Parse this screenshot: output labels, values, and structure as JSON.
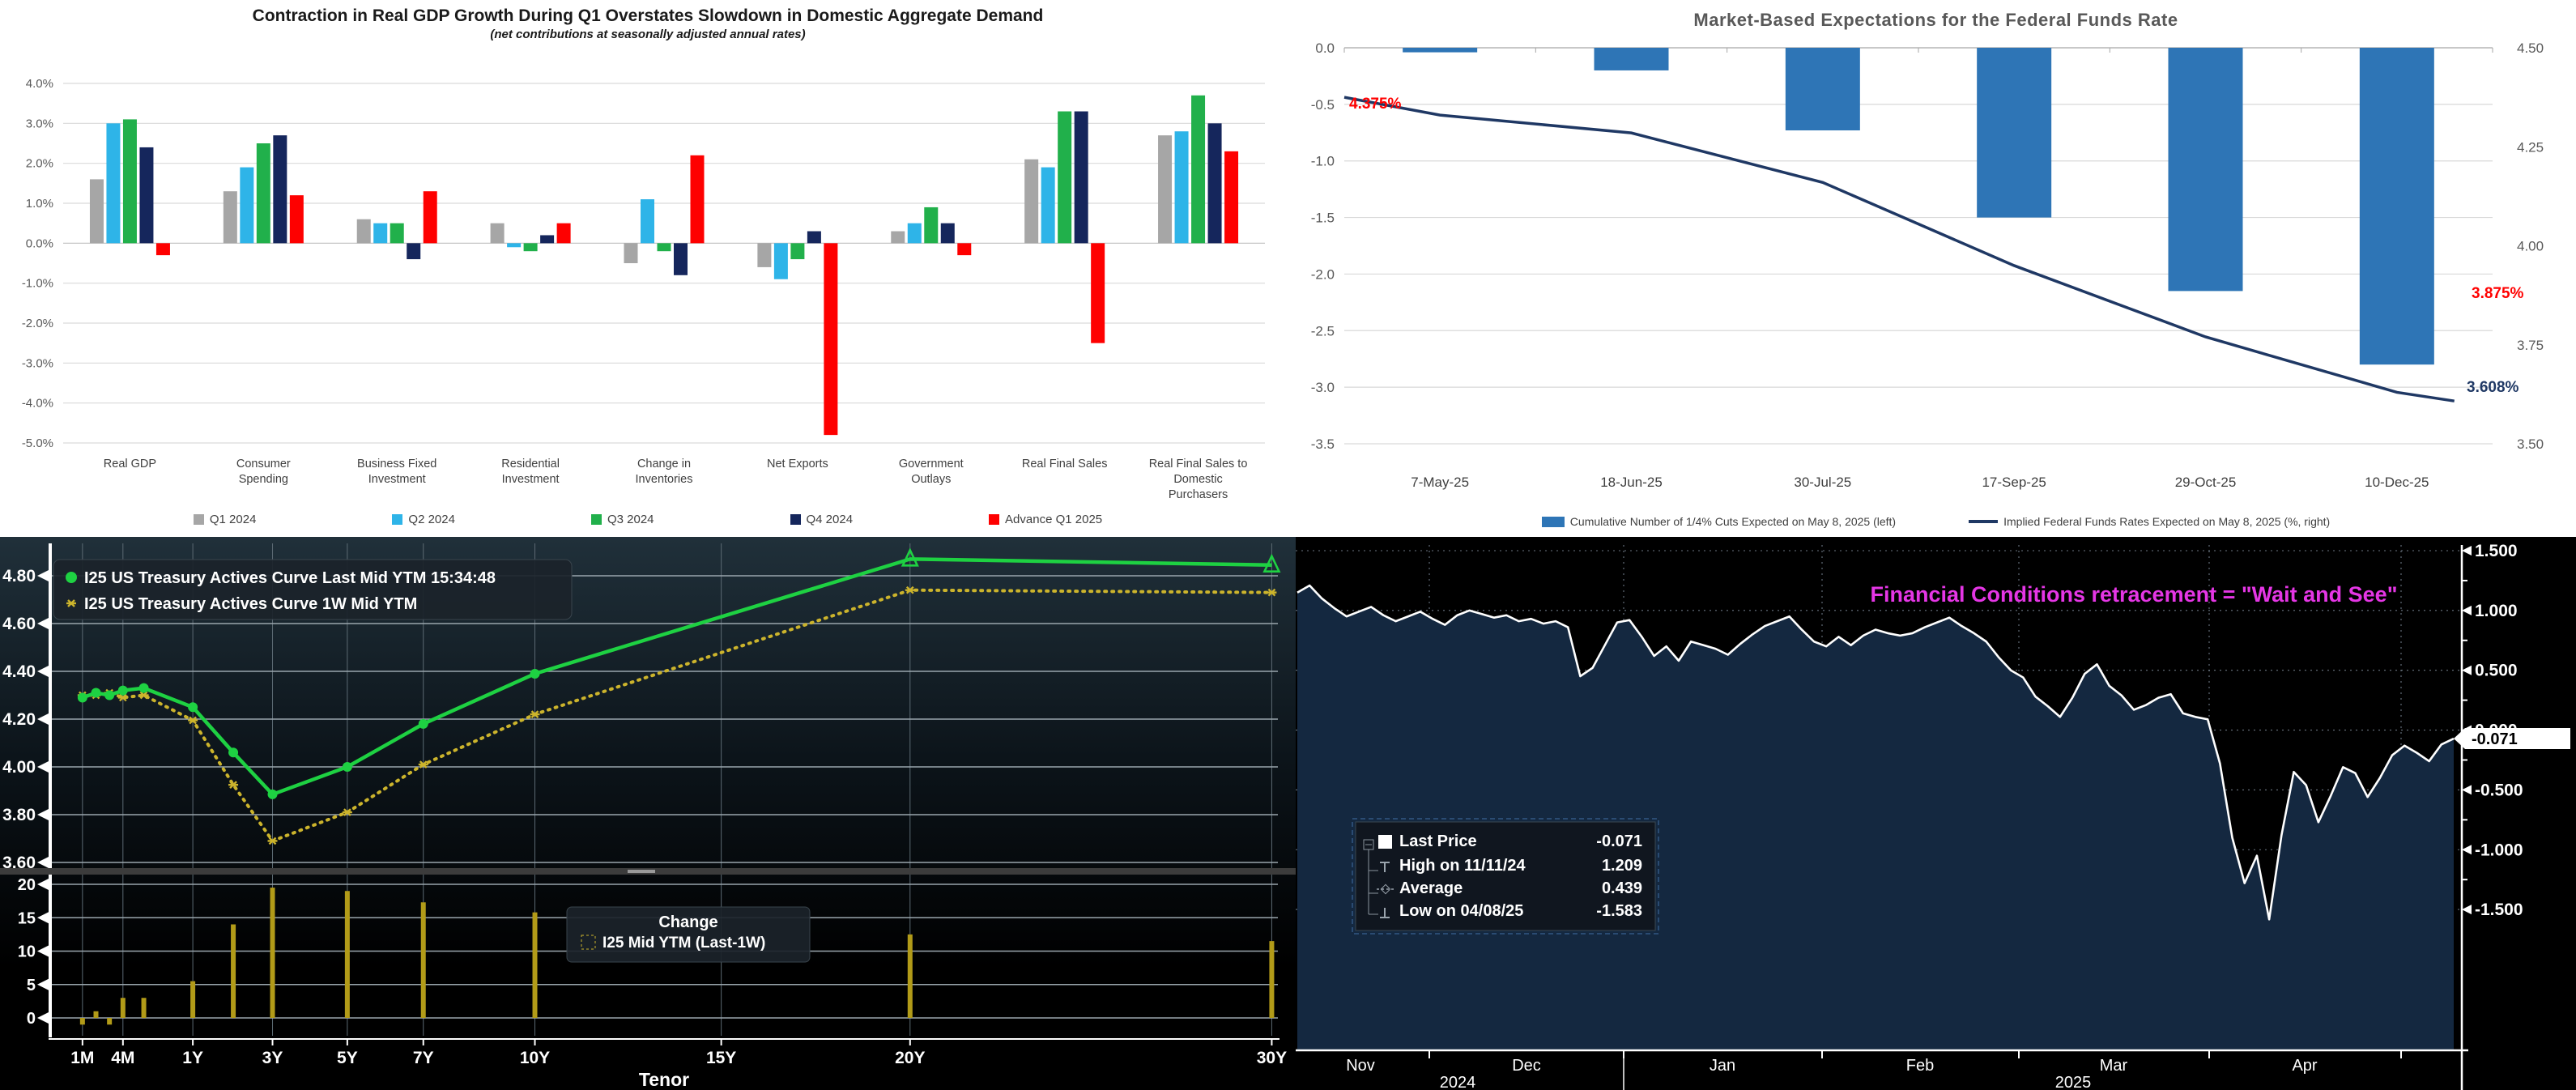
{
  "chart_data": [
    {
      "type": "bar",
      "title": "Contraction in Real GDP Growth During Q1 Overstates Slowdown in Domestic Aggregate Demand",
      "subtitle": "(net contributions at seasonally adjusted annual rates)",
      "categories": [
        "Real GDP",
        "Consumer|Spending",
        "Business Fixed|Investment",
        "Residential|Investment",
        "Change in|Inventories",
        "Net Exports",
        "Government|Outlays",
        "Real Final Sales",
        "Real Final Sales to|Domestic|Purchasers"
      ],
      "series": [
        {
          "name": "Q1 2024",
          "color": "#a6a6a6",
          "values": [
            1.6,
            1.3,
            0.6,
            0.5,
            -0.5,
            -0.6,
            0.3,
            2.1,
            2.7
          ]
        },
        {
          "name": "Q2 2024",
          "color": "#2eb4e8",
          "values": [
            3.0,
            1.9,
            0.5,
            -0.1,
            1.1,
            -0.9,
            0.5,
            1.9,
            2.8
          ]
        },
        {
          "name": "Q3 2024",
          "color": "#21b04b",
          "values": [
            3.1,
            2.5,
            0.5,
            -0.2,
            -0.2,
            -0.4,
            0.9,
            3.3,
            3.7
          ]
        },
        {
          "name": "Q4 2024",
          "color": "#15265c",
          "values": [
            2.4,
            2.7,
            -0.4,
            0.2,
            -0.8,
            0.3,
            0.5,
            3.3,
            3.0
          ]
        },
        {
          "name": "Advance Q1 2025",
          "color": "#fe0000",
          "values": [
            -0.3,
            1.2,
            1.3,
            0.5,
            2.2,
            -4.8,
            -0.3,
            -2.5,
            2.3
          ]
        }
      ],
      "y_ticks": [
        4,
        3,
        2,
        1,
        0,
        -1,
        -2,
        -3,
        -4,
        -5
      ],
      "y_tick_labels": [
        "4.0%",
        "3.0%",
        "2.0%",
        "1.0%",
        "0.0%",
        "-1.0%",
        "-2.0%",
        "-3.0%",
        "-4.0%",
        "-5.0%"
      ],
      "ylim": [
        -5,
        4
      ]
    },
    {
      "type": "bar+line",
      "title": "Market-Based Expectations for the Federal Funds Rate",
      "categories": [
        "7-May-25",
        "18-Jun-25",
        "30-Jul-25",
        "17-Sep-25",
        "29-Oct-25",
        "10-Dec-25"
      ],
      "bars": {
        "label": "Cumulative Number of 1/4% Cuts Expected on May 8, 2025 (left)",
        "color": "#2e75b6",
        "values": [
          -0.04,
          -0.2,
          -0.73,
          -1.5,
          -2.15,
          -2.8
        ]
      },
      "line": {
        "label": "Implied Federal Funds Rates Expected on May 8, 2025 (%, right)",
        "color": "#1f3864",
        "points": [
          [
            -0.5,
            4.375
          ],
          [
            0,
            4.33
          ],
          [
            1,
            4.285
          ],
          [
            2,
            4.16
          ],
          [
            3,
            3.95
          ],
          [
            4,
            3.77
          ],
          [
            5,
            3.63
          ],
          [
            5.3,
            3.608
          ]
        ]
      },
      "left_ticks": [
        0,
        -0.5,
        -1,
        -1.5,
        -2,
        -2.5,
        -3,
        -3.5
      ],
      "left_tick_labels": [
        "0.0",
        "-0.5",
        "-1.0",
        "-1.5",
        "-2.0",
        "-2.5",
        "-3.0",
        "-3.5"
      ],
      "right_ticks": [
        4.5,
        4.25,
        4.0,
        3.75,
        3.5
      ],
      "right_tick_labels": [
        "4.50",
        "4.25",
        "4.00",
        "3.75",
        "3.50"
      ],
      "annotations": [
        {
          "text": "4.375%",
          "color": "#ff0000"
        },
        {
          "text": "3.875%",
          "color": "#ff0000"
        },
        {
          "text": "3.608%",
          "color": "#1f3864"
        }
      ]
    },
    {
      "type": "line+bar",
      "legend": [
        {
          "label": "I25 US Treasury Actives Curve Last Mid YTM 15:34:48",
          "color": "#1ed142",
          "marker": "dot"
        },
        {
          "label": "I25 US Treasury Actives Curve 1W Mid YTM",
          "color": "#ccb42c",
          "marker": "star"
        }
      ],
      "points": [
        {
          "tenor": "1M",
          "f": 0.025,
          "last": 4.29,
          "week": 4.3,
          "chg": -1
        },
        {
          "tenor": "2M",
          "f": 0.036,
          "last": 4.31,
          "week": 4.3,
          "chg": 1
        },
        {
          "tenor": "3M",
          "f": 0.047,
          "last": 4.3,
          "week": 4.31,
          "chg": -1
        },
        {
          "tenor": "4M",
          "f": 0.058,
          "last": 4.32,
          "week": 4.29,
          "chg": 3
        },
        {
          "tenor": "6M",
          "f": 0.075,
          "last": 4.33,
          "week": 4.3,
          "chg": 3
        },
        {
          "tenor": "1Y",
          "f": 0.115,
          "last": 4.25,
          "week": 4.195,
          "chg": 5.5
        },
        {
          "tenor": "2Y",
          "f": 0.148,
          "last": 4.06,
          "week": 3.925,
          "chg": 14
        },
        {
          "tenor": "3Y",
          "f": 0.18,
          "last": 3.885,
          "week": 3.69,
          "chg": 19.5
        },
        {
          "tenor": "5Y",
          "f": 0.241,
          "last": 4.0,
          "week": 3.81,
          "chg": 19
        },
        {
          "tenor": "7Y",
          "f": 0.303,
          "last": 4.18,
          "week": 4.01,
          "chg": 17.3
        },
        {
          "tenor": "10Y",
          "f": 0.394,
          "last": 4.39,
          "week": 4.22,
          "chg": 15.8
        },
        {
          "tenor": "20Y",
          "f": 0.7,
          "last": 4.87,
          "week": 4.74,
          "chg": 12.5
        },
        {
          "tenor": "30Y",
          "f": 0.995,
          "last": 4.845,
          "week": 4.73,
          "chg": 11.5
        }
      ],
      "x_ticks": [
        {
          "label": "1M",
          "f": 0.025
        },
        {
          "label": "4M",
          "f": 0.058
        },
        {
          "label": "1Y",
          "f": 0.115
        },
        {
          "label": "3Y",
          "f": 0.18
        },
        {
          "label": "5Y",
          "f": 0.241
        },
        {
          "label": "7Y",
          "f": 0.303
        },
        {
          "label": "10Y",
          "f": 0.394
        },
        {
          "label": "15Y",
          "f": 0.546
        },
        {
          "label": "20Y",
          "f": 0.7
        },
        {
          "label": "30Y",
          "f": 0.995
        }
      ],
      "y_ticks_top": [
        4.8,
        4.6,
        4.4,
        4.2,
        4.0,
        3.8,
        3.6
      ],
      "y_tick_labels_top": [
        "4.80",
        "4.60",
        "4.40",
        "4.20",
        "4.00",
        "3.80",
        "3.60"
      ],
      "y_ticks_bottom": [
        20,
        15,
        10,
        5,
        0
      ],
      "xlabel": "Tenor",
      "change_legend_title": "Change",
      "change_legend_label": "I25 Mid YTM (Last-1W)"
    },
    {
      "type": "area",
      "title": "Financial Conditions retracement = \"Wait and See\"",
      "title_color": "#e536e5",
      "legend": [
        {
          "label": "Last Price",
          "value": "-0.071",
          "marker": "square"
        },
        {
          "label": "High on 11/11/24",
          "value": "1.209",
          "marker": "high"
        },
        {
          "label": "Average",
          "value": "0.439",
          "marker": "avg"
        },
        {
          "label": "Low on 04/08/25",
          "value": "-1.583",
          "marker": "low"
        }
      ],
      "last_price_label": "-0.071",
      "right_ticks": [
        1.5,
        1.0,
        0.5,
        0.0,
        -0.5,
        -1.0,
        -1.5
      ],
      "right_tick_labels": [
        "1.500",
        "1.000",
        "0.500",
        "0.000",
        "-0.500",
        "-1.000",
        "-1.500"
      ],
      "months": [
        "Nov",
        "Dec",
        "Jan",
        "Feb",
        "Mar",
        "Apr"
      ],
      "years": [
        "2024",
        "2025"
      ],
      "values": [
        1.15,
        1.209,
        1.1,
        1.02,
        0.95,
        0.99,
        1.03,
        0.96,
        0.91,
        0.95,
        0.99,
        0.93,
        0.88,
        0.96,
        1.0,
        0.97,
        0.94,
        0.96,
        0.91,
        0.93,
        0.89,
        0.91,
        0.86,
        0.45,
        0.52,
        0.71,
        0.9,
        0.92,
        0.78,
        0.62,
        0.7,
        0.58,
        0.74,
        0.71,
        0.68,
        0.63,
        0.72,
        0.8,
        0.87,
        0.91,
        0.95,
        0.84,
        0.74,
        0.7,
        0.78,
        0.71,
        0.79,
        0.84,
        0.81,
        0.79,
        0.81,
        0.86,
        0.9,
        0.94,
        0.87,
        0.81,
        0.74,
        0.61,
        0.5,
        0.44,
        0.28,
        0.2,
        0.11,
        0.27,
        0.47,
        0.55,
        0.37,
        0.29,
        0.17,
        0.21,
        0.27,
        0.3,
        0.14,
        0.11,
        0.09,
        -0.28,
        -0.9,
        -1.28,
        -1.05,
        -1.583,
        -0.88,
        -0.35,
        -0.46,
        -0.77,
        -0.55,
        -0.31,
        -0.36,
        -0.56,
        -0.4,
        -0.21,
        -0.13,
        -0.19,
        -0.26,
        -0.12,
        -0.071
      ],
      "high": 1.209,
      "low": -1.583,
      "average": 0.439,
      "last": -0.071
    }
  ]
}
